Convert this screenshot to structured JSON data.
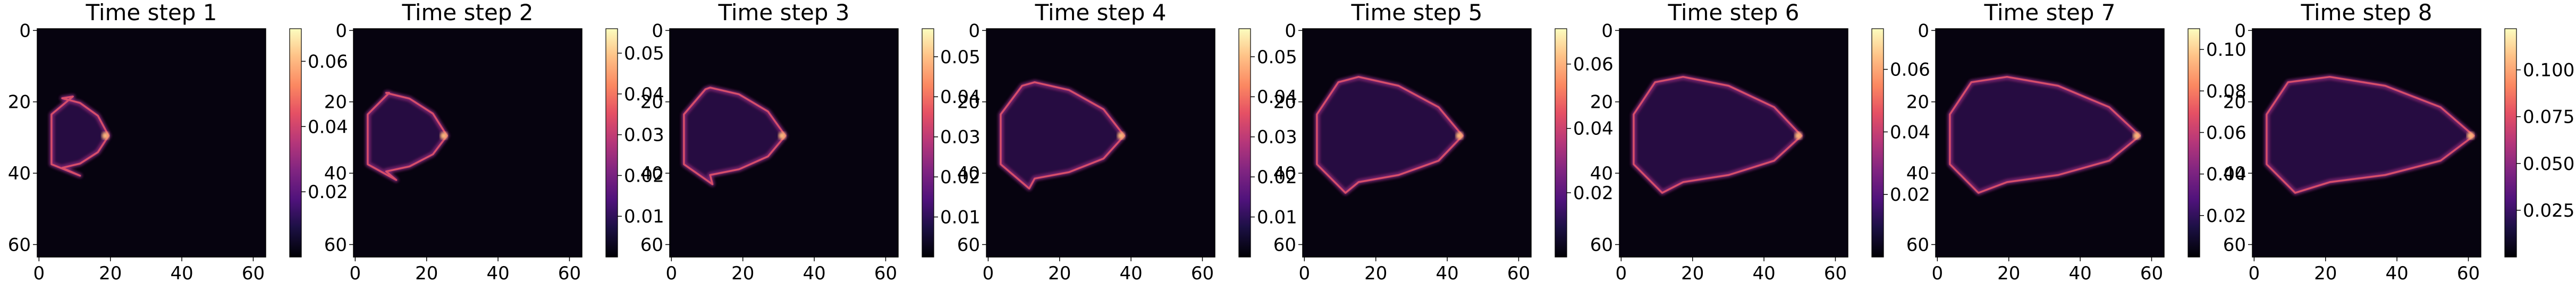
{
  "chart_data": [
    {
      "type": "heatmap",
      "title": "Time step 1",
      "colormap": "magma",
      "xticks": [
        0,
        20,
        40,
        60
      ],
      "yticks": [
        0,
        20,
        40,
        60
      ],
      "xlim": [
        0,
        64
      ],
      "ylim": [
        64,
        0
      ],
      "colorbar": {
        "ticks": [
          "0.02",
          "0.04",
          "0.06"
        ],
        "range": [
          0,
          0.07
        ]
      }
    },
    {
      "type": "heatmap",
      "title": "Time step 2",
      "colormap": "magma",
      "xticks": [
        0,
        20,
        40,
        60
      ],
      "yticks": [
        0,
        20,
        40,
        60
      ],
      "xlim": [
        0,
        64
      ],
      "ylim": [
        64,
        0
      ],
      "colorbar": {
        "ticks": [
          "0.01",
          "0.02",
          "0.03",
          "0.04",
          "0.05"
        ],
        "range": [
          0,
          0.056
        ]
      }
    },
    {
      "type": "heatmap",
      "title": "Time step 3",
      "colormap": "magma",
      "xticks": [
        0,
        20,
        40,
        60
      ],
      "yticks": [
        0,
        20,
        40,
        60
      ],
      "xlim": [
        0,
        64
      ],
      "ylim": [
        64,
        0
      ],
      "colorbar": {
        "ticks": [
          "0.01",
          "0.02",
          "0.03",
          "0.04",
          "0.05"
        ],
        "range": [
          0,
          0.057
        ]
      }
    },
    {
      "type": "heatmap",
      "title": "Time step 4",
      "colormap": "magma",
      "xticks": [
        0,
        20,
        40,
        60
      ],
      "yticks": [
        0,
        20,
        40,
        60
      ],
      "xlim": [
        0,
        64
      ],
      "ylim": [
        64,
        0
      ],
      "colorbar": {
        "ticks": [
          "0.01",
          "0.02",
          "0.03",
          "0.04",
          "0.05"
        ],
        "range": [
          0,
          0.057
        ]
      }
    },
    {
      "type": "heatmap",
      "title": "Time step 5",
      "colormap": "magma",
      "xticks": [
        0,
        20,
        40,
        60
      ],
      "yticks": [
        0,
        20,
        40,
        60
      ],
      "xlim": [
        0,
        64
      ],
      "ylim": [
        64,
        0
      ],
      "colorbar": {
        "ticks": [
          "0.02",
          "0.04",
          "0.06"
        ],
        "range": [
          0,
          0.071
        ]
      }
    },
    {
      "type": "heatmap",
      "title": "Time step 6",
      "colormap": "magma",
      "xticks": [
        0,
        20,
        40,
        60
      ],
      "yticks": [
        0,
        20,
        40,
        60
      ],
      "xlim": [
        0,
        64
      ],
      "ylim": [
        64,
        0
      ],
      "colorbar": {
        "ticks": [
          "0.02",
          "0.04",
          "0.06"
        ],
        "range": [
          0,
          0.073
        ]
      }
    },
    {
      "type": "heatmap",
      "title": "Time step 7",
      "colormap": "magma",
      "xticks": [
        0,
        20,
        40,
        60
      ],
      "yticks": [
        0,
        20,
        40,
        60
      ],
      "xlim": [
        0,
        64
      ],
      "ylim": [
        64,
        0
      ],
      "colorbar": {
        "ticks": [
          "0.02",
          "0.04",
          "0.06",
          "0.08",
          "0.10"
        ],
        "range": [
          0,
          0.11
        ]
      }
    },
    {
      "type": "heatmap",
      "title": "Time step 8",
      "colormap": "magma",
      "xticks": [
        0,
        20,
        40,
        60
      ],
      "yticks": [
        0,
        20,
        40,
        60
      ],
      "xlim": [
        0,
        64
      ],
      "ylim": [
        64,
        0
      ],
      "colorbar": {
        "ticks": [
          "0.025",
          "0.050",
          "0.075",
          "0.100"
        ],
        "range": [
          0,
          0.122
        ]
      }
    }
  ]
}
